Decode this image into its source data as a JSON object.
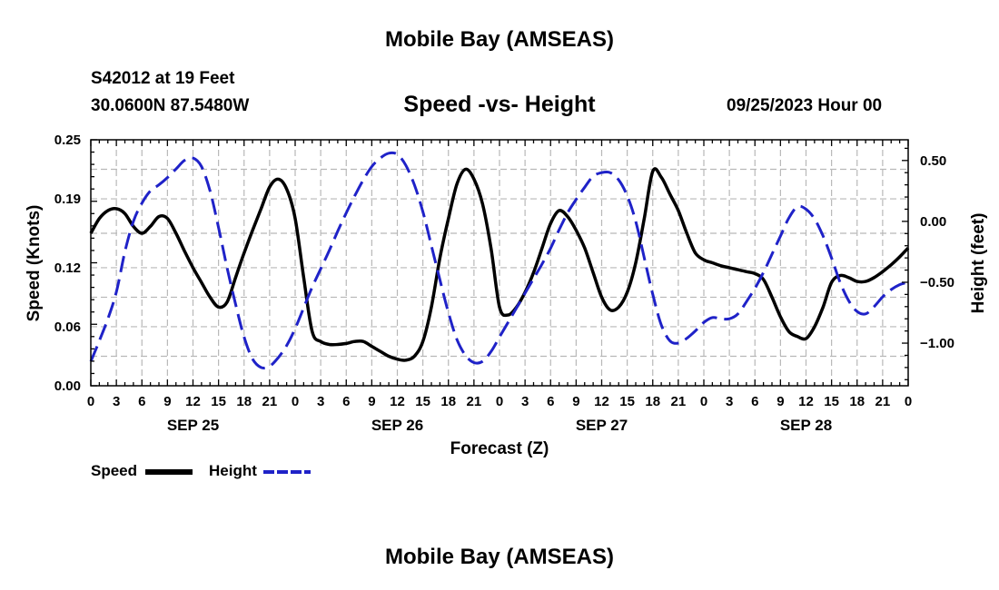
{
  "header": {
    "title": "Mobile Bay (AMSEAS)",
    "station": "S42012 at 19 Feet",
    "coordinates": "30.0600N  87.5480W",
    "datetime": "09/25/2023 Hour 00"
  },
  "footer": {
    "title": "Mobile Bay (AMSEAS)"
  },
  "legend": {
    "speed_label": "Speed",
    "height_label": "Height"
  },
  "colors": {
    "speed": "#000000",
    "height": "#1f22c8",
    "grid": "#b8b8b8"
  },
  "chart_data": {
    "type": "line",
    "title": "Speed -vs- Height",
    "xlabel": "Forecast (Z)",
    "ylabel": "Speed (Knots)",
    "y2label": "Height (feet)",
    "xlim": [
      0,
      96
    ],
    "ylim": [
      0,
      0.25
    ],
    "y2lim": [
      -1.35,
      0.67
    ],
    "x_tick_labels": [
      "0",
      "3",
      "6",
      "9",
      "12",
      "15",
      "18",
      "21",
      "0",
      "3",
      "6",
      "9",
      "12",
      "15",
      "18",
      "21",
      "0",
      "3",
      "6",
      "9",
      "12",
      "15",
      "18",
      "21",
      "0",
      "3",
      "6",
      "9",
      "12",
      "15",
      "18",
      "21",
      "0"
    ],
    "x_tick_step": 3,
    "date_labels": [
      {
        "label": "SEP 25",
        "hour": 12
      },
      {
        "label": "SEP 26",
        "hour": 36
      },
      {
        "label": "SEP 27",
        "hour": 60
      },
      {
        "label": "SEP 28",
        "hour": 84
      }
    ],
    "y_ticks": [
      0.0,
      0.06,
      0.12,
      0.19,
      0.25
    ],
    "y_tick_labels": [
      "0.00",
      "0.06",
      "0.12",
      "0.19",
      "0.25"
    ],
    "y2_ticks": [
      0.5,
      0.0,
      -0.5,
      -1.0
    ],
    "y2_tick_labels": [
      "0.50",
      "0.00",
      "−0.50",
      "−1.00"
    ],
    "legend_position": "bottom-left",
    "series": [
      {
        "name": "Speed",
        "axis": "left",
        "x": [
          0,
          1,
          2,
          3,
          4,
          5,
          6,
          7,
          8,
          9,
          10,
          11,
          12,
          13,
          14,
          15,
          16,
          17,
          18,
          19,
          20,
          21,
          22,
          23,
          24,
          25,
          26,
          27,
          28,
          29,
          30,
          31,
          32,
          33,
          34,
          35,
          36,
          37,
          38,
          39,
          40,
          41,
          42,
          43,
          44,
          45,
          46,
          47,
          48,
          49,
          50,
          51,
          52,
          53,
          54,
          55,
          56,
          57,
          58,
          59,
          60,
          61,
          62,
          63,
          64,
          65,
          66,
          67,
          68,
          69,
          70,
          71,
          72,
          73,
          74,
          75,
          76,
          77,
          78,
          79,
          80,
          81,
          82,
          83,
          84,
          85,
          86,
          87,
          88,
          89,
          90,
          91,
          92,
          93,
          94,
          95,
          96
        ],
        "values": [
          0.155,
          0.17,
          0.178,
          0.18,
          0.175,
          0.162,
          0.155,
          0.162,
          0.172,
          0.17,
          0.155,
          0.137,
          0.12,
          0.105,
          0.09,
          0.08,
          0.085,
          0.11,
          0.135,
          0.158,
          0.18,
          0.202,
          0.21,
          0.2,
          0.17,
          0.11,
          0.055,
          0.045,
          0.042,
          0.042,
          0.043,
          0.045,
          0.045,
          0.04,
          0.035,
          0.03,
          0.027,
          0.026,
          0.03,
          0.045,
          0.08,
          0.13,
          0.17,
          0.205,
          0.22,
          0.21,
          0.185,
          0.14,
          0.08,
          0.072,
          0.08,
          0.095,
          0.115,
          0.14,
          0.165,
          0.178,
          0.172,
          0.158,
          0.14,
          0.115,
          0.09,
          0.077,
          0.08,
          0.095,
          0.125,
          0.17,
          0.218,
          0.212,
          0.195,
          0.178,
          0.155,
          0.135,
          0.128,
          0.125,
          0.122,
          0.12,
          0.118,
          0.116,
          0.114,
          0.108,
          0.09,
          0.07,
          0.055,
          0.05,
          0.048,
          0.06,
          0.08,
          0.105,
          0.112,
          0.11,
          0.106,
          0.106,
          0.11,
          0.116,
          0.123,
          0.131,
          0.14
        ]
      },
      {
        "name": "Height",
        "axis": "right",
        "x": [
          0,
          1,
          2,
          3,
          4,
          5,
          6,
          7,
          8,
          9,
          10,
          11,
          12,
          13,
          14,
          15,
          16,
          17,
          18,
          19,
          20,
          21,
          22,
          23,
          24,
          25,
          26,
          27,
          28,
          29,
          30,
          31,
          32,
          33,
          34,
          35,
          36,
          37,
          38,
          39,
          40,
          41,
          42,
          43,
          44,
          45,
          46,
          47,
          48,
          49,
          50,
          51,
          52,
          53,
          54,
          55,
          56,
          57,
          58,
          59,
          60,
          61,
          62,
          63,
          64,
          65,
          66,
          67,
          68,
          69,
          70,
          71,
          72,
          73,
          74,
          75,
          76,
          77,
          78,
          79,
          80,
          81,
          82,
          83,
          84,
          85,
          86,
          87,
          88,
          89,
          90,
          91,
          92,
          93,
          94,
          95,
          96
        ],
        "values": [
          -1.15,
          -0.98,
          -0.8,
          -0.58,
          -0.25,
          0.0,
          0.15,
          0.25,
          0.3,
          0.36,
          0.43,
          0.5,
          0.52,
          0.45,
          0.25,
          -0.05,
          -0.38,
          -0.68,
          -0.95,
          -1.13,
          -1.2,
          -1.19,
          -1.12,
          -1.02,
          -0.88,
          -0.71,
          -0.54,
          -0.39,
          -0.24,
          -0.08,
          0.07,
          0.21,
          0.34,
          0.45,
          0.52,
          0.56,
          0.55,
          0.46,
          0.3,
          0.08,
          -0.2,
          -0.48,
          -0.75,
          -0.97,
          -1.1,
          -1.16,
          -1.15,
          -1.07,
          -0.95,
          -0.83,
          -0.71,
          -0.59,
          -0.47,
          -0.35,
          -0.22,
          -0.07,
          0.07,
          0.18,
          0.28,
          0.37,
          0.4,
          0.4,
          0.34,
          0.21,
          0.0,
          -0.3,
          -0.6,
          -0.85,
          -0.98,
          -1.0,
          -0.96,
          -0.9,
          -0.83,
          -0.79,
          -0.8,
          -0.8,
          -0.76,
          -0.66,
          -0.55,
          -0.42,
          -0.27,
          -0.12,
          0.03,
          0.12,
          0.1,
          0.02,
          -0.12,
          -0.3,
          -0.5,
          -0.65,
          -0.74,
          -0.76,
          -0.7,
          -0.62,
          -0.56,
          -0.52,
          -0.5
        ]
      }
    ]
  }
}
